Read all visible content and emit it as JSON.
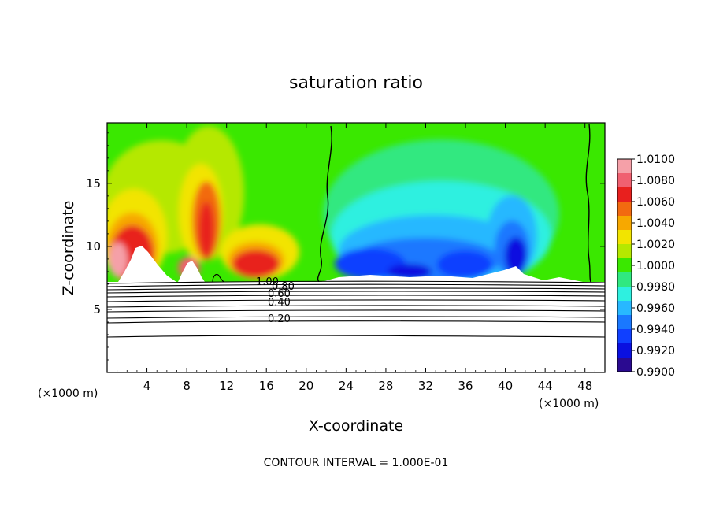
{
  "chart_data": {
    "type": "heatmap",
    "title": "saturation ratio",
    "xlabel": "X-coordinate",
    "ylabel": "Z-coordinate",
    "x_units_left": "(×1000 m)",
    "x_units_right": "(×1000 m)",
    "xlim": [
      0,
      50
    ],
    "ylim": [
      0,
      19.8
    ],
    "x_ticks": [
      "4",
      "8",
      "12",
      "16",
      "20",
      "24",
      "28",
      "32",
      "36",
      "40",
      "44",
      "48"
    ],
    "y_ticks": [
      "5",
      "10",
      "15"
    ],
    "colorbar": {
      "labels": [
        "1.0100",
        "1.0080",
        "1.0060",
        "1.0040",
        "1.0020",
        "1.0000",
        "0.9980",
        "0.9960",
        "0.9940",
        "0.9920",
        "0.9900"
      ],
      "colors": [
        "#f5a0a8",
        "#f06070",
        "#e8201e",
        "#f26a10",
        "#f7a800",
        "#f2e400",
        "#b5e800",
        "#3ae800",
        "#30e880",
        "#2ef0e0",
        "#28b8ff",
        "#1a78ff",
        "#1040ff",
        "#0a10e0",
        "#2a0a90"
      ]
    },
    "contour_labels": [
      "1.00",
      "0.80",
      "0.60",
      "0.40",
      "0.20"
    ],
    "footer": "CONTOUR INTERVAL = 1.000E-01"
  }
}
